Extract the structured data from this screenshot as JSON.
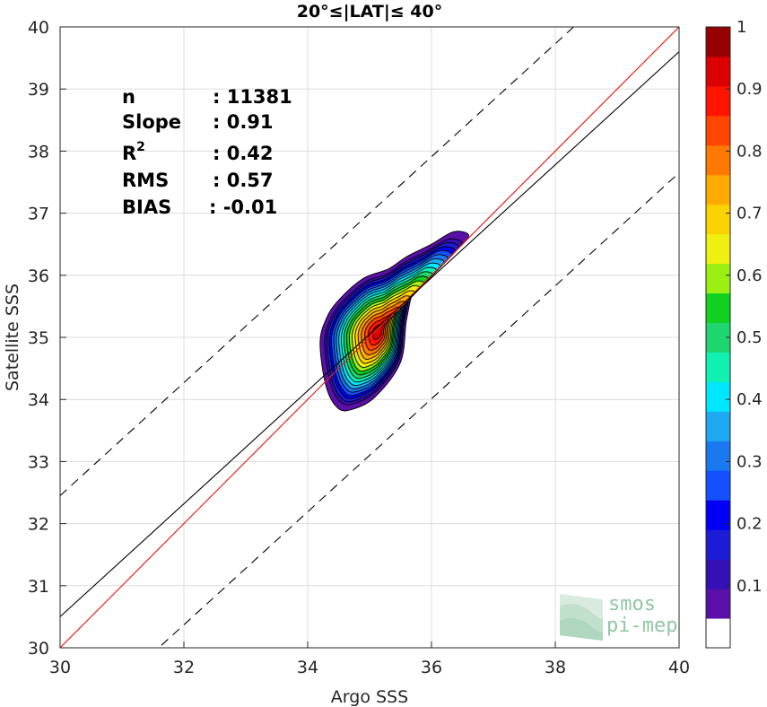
{
  "chart_data": {
    "type": "contour",
    "title": "20°≤|LAT|≤ 40°",
    "xlabel": "Argo SSS",
    "ylabel": "Satellite SSS",
    "xlim": [
      30,
      40
    ],
    "ylim": [
      30,
      40
    ],
    "xticks": [
      "30",
      "32",
      "34",
      "36",
      "38",
      "40"
    ],
    "yticks": [
      "30",
      "31",
      "32",
      "33",
      "34",
      "35",
      "36",
      "37",
      "38",
      "39",
      "40"
    ],
    "grid": true,
    "stats": [
      {
        "label": "n",
        "value": ": 11381"
      },
      {
        "label": "Slope",
        "value": ": 0.91"
      },
      {
        "label": "R",
        "sup": "2",
        "value": ": 0.42"
      },
      {
        "label": "RMS",
        "value": ": 0.57"
      },
      {
        "label": "BIAS",
        "value": ": -0.01"
      }
    ],
    "lines": {
      "identity": {
        "from": [
          30,
          30
        ],
        "to": [
          40,
          40
        ],
        "color": "#e8211a"
      },
      "regression": {
        "slope": 0.91,
        "intercept": 3.2,
        "color": "#000000"
      },
      "bounds": {
        "offset": 1.95,
        "style": "dashed",
        "color": "#000000"
      }
    },
    "density": {
      "center": [
        35.15,
        35.1
      ],
      "levels": [
        0.05,
        0.1,
        0.15,
        0.2,
        0.25,
        0.3,
        0.35,
        0.4,
        0.45,
        0.5,
        0.55,
        0.6,
        0.65,
        0.7,
        0.75,
        0.8,
        0.85,
        0.9,
        0.95
      ],
      "outer_outline": [
        [
          34.2,
          34.9
        ],
        [
          34.3,
          34.2
        ],
        [
          34.5,
          33.85
        ],
        [
          34.75,
          33.85
        ],
        [
          35.1,
          34.05
        ],
        [
          35.5,
          34.6
        ],
        [
          35.6,
          35.3
        ],
        [
          35.75,
          35.85
        ],
        [
          36.1,
          36.2
        ],
        [
          36.45,
          36.45
        ],
        [
          36.6,
          36.65
        ],
        [
          36.35,
          36.7
        ],
        [
          36.0,
          36.5
        ],
        [
          35.6,
          36.3
        ],
        [
          35.3,
          36.1
        ],
        [
          34.9,
          35.95
        ],
        [
          34.5,
          35.6
        ],
        [
          34.3,
          35.3
        ]
      ]
    },
    "colorbar": {
      "ticks": [
        "0.1",
        "0.2",
        "0.3",
        "0.4",
        "0.5",
        "0.6",
        "0.7",
        "0.8",
        "0.9",
        "1"
      ],
      "range": [
        0,
        1
      ],
      "colors": [
        "#ffffff",
        "#5a0fa8",
        "#3510b4",
        "#1c1cd6",
        "#0000f5",
        "#1450ff",
        "#1a78f0",
        "#1eaaf0",
        "#00e6ff",
        "#10f0b0",
        "#1ed670",
        "#10d020",
        "#9af010",
        "#f0f010",
        "#fcd200",
        "#ffaa00",
        "#ff7800",
        "#ff4600",
        "#ff1400",
        "#dc0000",
        "#960000"
      ]
    },
    "logo": {
      "line1": "smos",
      "line2": "pi-mep"
    }
  }
}
